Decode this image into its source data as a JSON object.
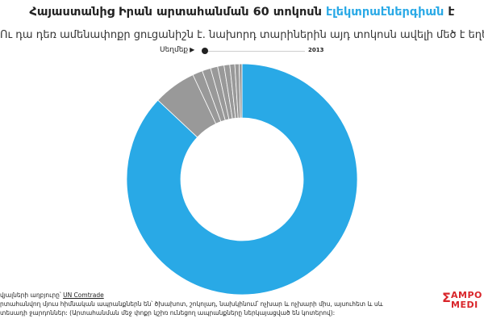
{
  "header": {
    "title_part1": "Հայաստանից Իրան արտահանման 60 տոկոսն ",
    "title_highlight": "էլեկտրաէներգիան",
    "title_part2": " է",
    "subtitle": "Ու դա դեռ ամենափոքր ցուցանիշն է. նախորդ տարիներին այդ տոկոսն ավելի մեծ է եղել"
  },
  "slider": {
    "button_label": "Սեղմեք",
    "year": "2013"
  },
  "colors": {
    "accent": "#29a9e6",
    "electricity": "#29a9e6",
    "others": "#999999",
    "separator": "#ffffff",
    "brand": "#d9252a"
  },
  "chart_data": {
    "type": "pie",
    "donut": true,
    "title": "Հայաստանից Իրան արտահանման 60 տոկոսն էլեկտրաէներգիան է",
    "slices": [
      {
        "value": 87.0,
        "highlight": true
      },
      {
        "value": 6.0
      },
      {
        "value": 1.4
      },
      {
        "value": 1.2
      },
      {
        "value": 1.0
      },
      {
        "value": 0.9
      },
      {
        "value": 0.8
      },
      {
        "value": 0.7
      },
      {
        "value": 0.6
      },
      {
        "value": 0.4
      }
    ]
  },
  "footer": {
    "source_prefix": "վյալների աղբյուրը՝ ",
    "source_link": "UN Comtrade",
    "note_line1": "րտահանվող մյուս հիմնական ապրանքներն են՝ ծխախոտ, շոկոլադ, նախկինում՝ ոչխար և ոչխարի միս, այսուհետ և սև",
    "note_line2": "տեսադի ջարդոններ: (Արտահանման մեջ փոքր կշիռ ունեցող ապրանքները ներկայացված են կոտերով):"
  },
  "logo": {
    "symbol": "Σ",
    "line1": "AMPO",
    "line2": "MEDI"
  }
}
